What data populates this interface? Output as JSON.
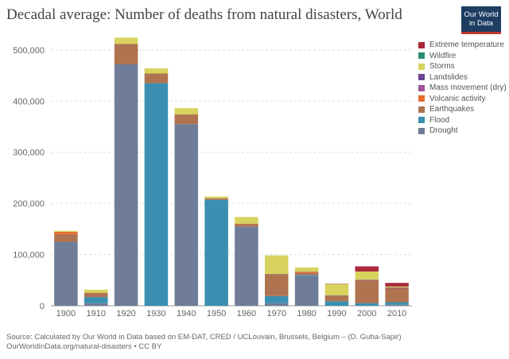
{
  "title": "Decadal average: Number of deaths from natural disasters, World",
  "logo": {
    "line1": "Our World",
    "line2": "in Data"
  },
  "source": {
    "line1": "Source: Calculated by Our World in Data based on EM-DAT, CRED / UCLouvain, Brussels, Belgium – (D. Guha-Sapir)",
    "line2": "OurWorldInData.org/natural-disasters • CC BY"
  },
  "colors": {
    "Extreme temperature": "#a9293b",
    "Wildfire": "#2a8a72",
    "Storms": "#d7d35e",
    "Landslides": "#6a4593",
    "Mass movement (dry)": "#a0529b",
    "Volcanic activity": "#e36e2c",
    "Earthquakes": "#b07350",
    "Flood": "#3b8fb0",
    "Drought": "#6f7d98"
  },
  "chart_data": {
    "type": "bar",
    "stacked": true,
    "title": "Decadal average: Number of deaths from natural disasters, World",
    "categories": [
      "1900",
      "1910",
      "1920",
      "1930",
      "1940",
      "1950",
      "1960",
      "1970",
      "1980",
      "1990",
      "2000",
      "2010"
    ],
    "ylim": [
      0,
      520000
    ],
    "yticks": [
      0,
      100000,
      200000,
      300000,
      400000,
      500000
    ],
    "ytick_labels": [
      "0",
      "100,000",
      "200,000",
      "300,000",
      "400,000",
      "500,000"
    ],
    "grid": true,
    "legend_position": "right",
    "series": [
      {
        "name": "Drought",
        "values": [
          125000,
          5000,
          472000,
          0,
          355000,
          0,
          155000,
          5000,
          58000,
          0,
          200,
          2000
        ]
      },
      {
        "name": "Flood",
        "values": [
          0,
          12000,
          0,
          435000,
          0,
          207000,
          0,
          14000,
          2000,
          9000,
          5000,
          5000
        ]
      },
      {
        "name": "Earthquakes",
        "values": [
          15000,
          8000,
          40000,
          19000,
          19000,
          3000,
          5000,
          43000,
          4000,
          11000,
          45000,
          28000
        ]
      },
      {
        "name": "Volcanic activity",
        "values": [
          4500,
          500,
          0,
          0,
          200,
          500,
          500,
          0,
          2400,
          0,
          0,
          0
        ]
      },
      {
        "name": "Mass movement (dry)",
        "values": [
          0,
          0,
          0,
          0,
          0,
          0,
          0,
          0,
          0,
          0,
          0,
          0
        ]
      },
      {
        "name": "Landslides",
        "values": [
          0,
          0,
          0,
          0,
          0,
          0,
          0,
          400,
          500,
          600,
          800,
          700
        ]
      },
      {
        "name": "Storms",
        "values": [
          2000,
          6000,
          12000,
          10000,
          12000,
          3000,
          13000,
          36000,
          8000,
          22000,
          16000,
          2000
        ]
      },
      {
        "name": "Wildfire",
        "values": [
          0,
          0,
          0,
          0,
          0,
          0,
          0,
          0,
          0,
          0,
          0,
          0
        ]
      },
      {
        "name": "Extreme temperature",
        "values": [
          0,
          0,
          0,
          0,
          0,
          0,
          0,
          0,
          0,
          600,
          10000,
          7000
        ]
      }
    ],
    "legend": [
      "Extreme temperature",
      "Wildfire",
      "Storms",
      "Landslides",
      "Mass movement (dry)",
      "Volcanic activity",
      "Earthquakes",
      "Flood",
      "Drought"
    ]
  }
}
